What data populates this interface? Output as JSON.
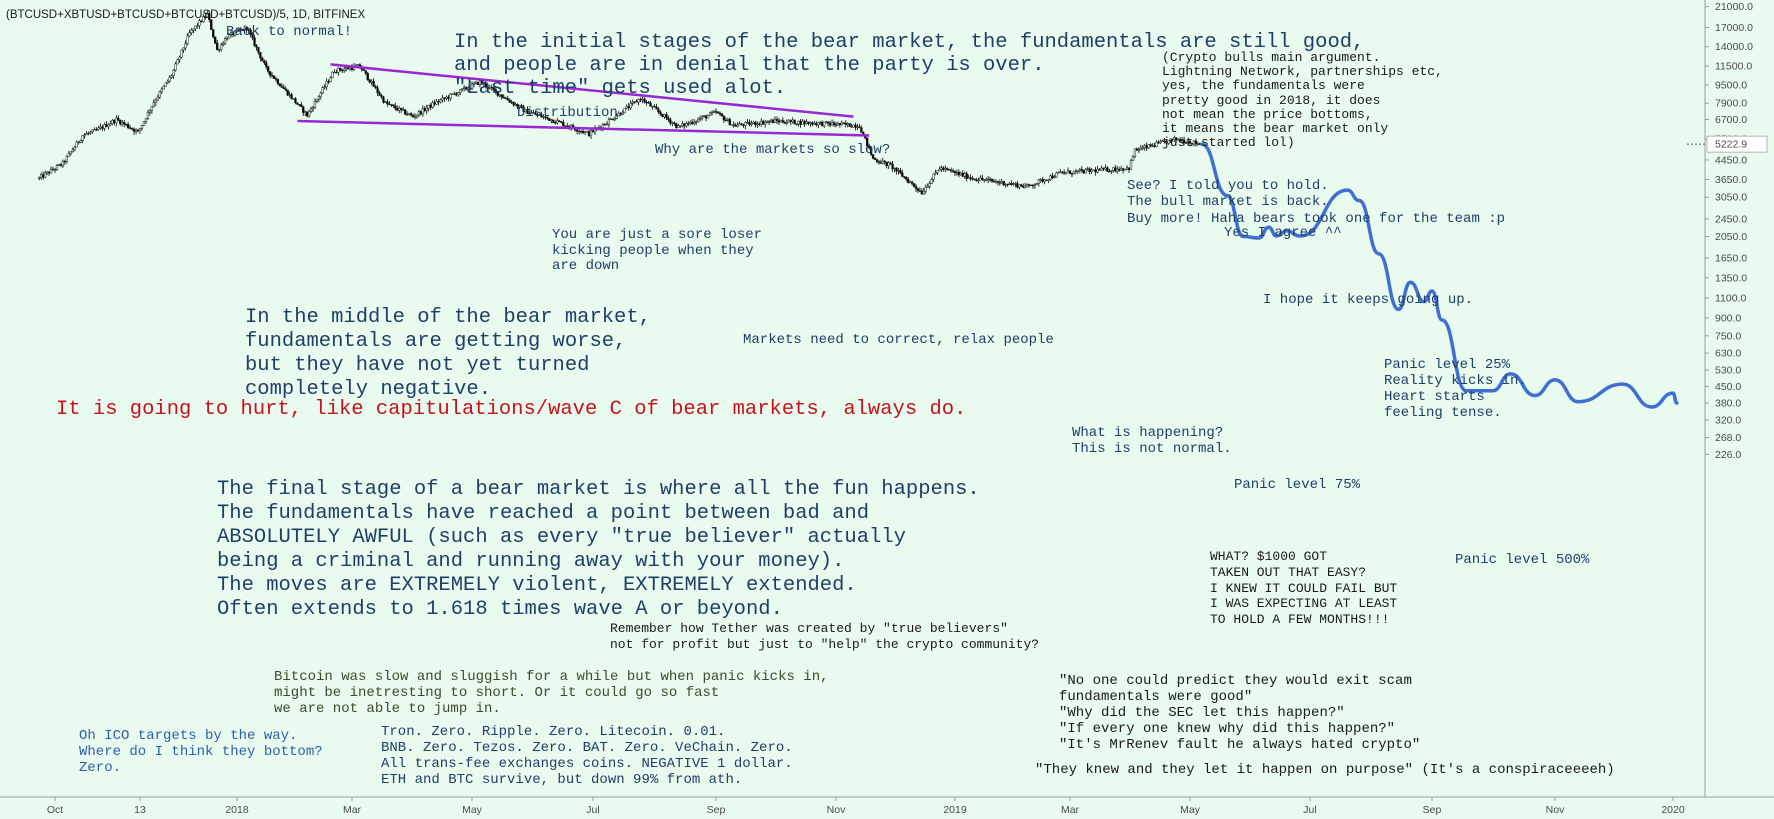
{
  "symbol": "(BTCUSD+XBTUSD+BTCUSD+BTCUSD+BTCUSD)/5, 1D, BITFINEX",
  "colors": {
    "background": "#e9faef",
    "up_candle": "#1e1e1e",
    "down_candle": "#000000",
    "trendline": "#9b27d4",
    "projection": "#3f6fd1",
    "text_blue": "#1f3f66",
    "text_red": "#c3141b",
    "text_dark": "#1a1a1a",
    "text_olive": "#3d4a2a",
    "text_link": "#2d5fa8",
    "price_label_bg": "#ffffff"
  },
  "annotations": {
    "back_to_normal": "Back to normal!",
    "initial_stage": "In the initial stages of the bear market, the fundamentals are still good,\nand people are in denial that the party is over.\n\"Last time\" gets used alot.",
    "crypto_bulls": "(Crypto bulls main argument.\nLightning Network, partnerships etc,\nyes, the fundamentals were\npretty good in 2018, it does\nnot mean the price bottoms,\nit means the bear market only\njust started lol)",
    "distribution": "Distribution",
    "why_slow": "Why are the markets so slow?",
    "sore_loser": "You are just a sore loser\nkicking people when they\nare down",
    "told_you": "See? I told you to hold.\nThe bull market is back.\nBuy more! Haha bears took one for the team :p",
    "yes_agree": "Yes I agree ^^",
    "middle_stage": "In the middle of the bear market,\nfundamentals are getting worse,\nbut they have not yet turned\ncompletely negative.",
    "markets_correct": "Markets need to correct, relax people",
    "keeps_going": "I hope it keeps going up.",
    "panic25": "Panic level 25%\nReality kicks in.\nHeart starts\nfeeling tense.",
    "hurt": "It is going to hurt, like capitulations/wave C of bear markets, always do.",
    "happening": "What is happening?\nThis is not normal.",
    "final_stage": "The final stage of a bear market is where all the fun happens.\nThe fundamentals have reached a point between bad and\nABSOLUTELY AWFUL (such as every \"true believer\" actually\nbeing a criminal and running away with your money).\nThe moves are EXTREMELY violent, EXTREMELY extended.\nOften extends to 1.618 times wave A or beyond.",
    "panic75": "Panic level 75%",
    "what1000": "WHAT? $1000 GOT\nTAKEN OUT THAT EASY?\nI KNEW IT COULD FAIL BUT\nI WAS EXPECTING AT LEAST\nTO HOLD A FEW MONTHS!!!",
    "panic500": "Panic level 500%",
    "tether": "Remember how Tether was created by \"true believers\"\nnot for profit but just to \"help\" the crypto community?",
    "sluggish": "Bitcoin was slow and sluggish for a while but when panic kicks in,\nmight be inetresting to short. Or it could go so fast\nwe are not able to jump in.",
    "exit_scam": "\"No one could predict they would exit scam\nfundamentals were good\"\n\"Why did the SEC let this happen?\"\n\"If every one knew why did this happen?\"\n\"It's MrRenev fault he always hated crypto\"",
    "ico": "Oh ICO targets by the way.\nWhere do I think they bottom?\nZero.",
    "tron": "Tron. Zero. Ripple. Zero. Litecoin. 0.01.\nBNB. Zero. Tezos. Zero. BAT. Zero. VeChain. Zero.\nAll trans-fee exchanges coins. NEGATIVE 1 dollar.\nETH and BTC survive, but down 99% from ath.",
    "they_knew": "\"They knew and they let it happen on purpose\" (It's a conspiraceeeeh)"
  },
  "chart_data": {
    "type": "candlestick",
    "symbol": "(BTCUSD+XBTUSD+BTCUSD+BTCUSD+BTCUSD)/5",
    "interval": "1D",
    "exchange": "BITFINEX",
    "y_scale": "log",
    "ylim": [
      210,
      22000
    ],
    "xlim": [
      "2017-09-23",
      "2020-02-10"
    ],
    "last_price": 5222.9,
    "y_ticks": [
      21000.0,
      17000.0,
      14000.0,
      11500.0,
      9500.0,
      7900.0,
      6700.0,
      5500.0,
      4450.0,
      3650.0,
      3050.0,
      2450.0,
      2050.0,
      1650.0,
      1350.0,
      1100.0,
      900.0,
      750.0,
      630.0,
      530.0,
      450.0,
      380.0,
      320.0,
      268.0,
      226.0
    ],
    "x_ticks": [
      "Oct",
      "13",
      "2018",
      "Mar",
      "May",
      "Jul",
      "Sep",
      "Nov",
      "2019",
      "Mar",
      "May",
      "Jul",
      "Sep",
      "Nov",
      "2020"
    ],
    "x_tick_dates": [
      "2017-10-01",
      "2017-11-13",
      "2018-01-01",
      "2018-03-01",
      "2018-05-01",
      "2018-07-01",
      "2018-09-01",
      "2018-11-01",
      "2019-01-01",
      "2019-03-01",
      "2019-05-01",
      "2019-07-01",
      "2019-09-01",
      "2019-11-01",
      "2020-01-01"
    ],
    "price_path": [
      [
        "2017-09-23",
        3700
      ],
      [
        "2017-10-05",
        4300
      ],
      [
        "2017-10-15",
        5700
      ],
      [
        "2017-10-22",
        6000
      ],
      [
        "2017-11-01",
        6700
      ],
      [
        "2017-11-12",
        5900
      ],
      [
        "2017-11-20",
        8000
      ],
      [
        "2017-11-29",
        10500
      ],
      [
        "2017-12-08",
        16000
      ],
      [
        "2017-12-17",
        19500
      ],
      [
        "2017-12-22",
        13500
      ],
      [
        "2017-12-27",
        15500
      ],
      [
        "2018-01-06",
        17000
      ],
      [
        "2018-01-16",
        11200
      ],
      [
        "2018-02-06",
        7000
      ],
      [
        "2018-02-20",
        11000
      ],
      [
        "2018-03-05",
        11500
      ],
      [
        "2018-03-18",
        7900
      ],
      [
        "2018-04-01",
        6900
      ],
      [
        "2018-04-12",
        7900
      ],
      [
        "2018-05-05",
        9800
      ],
      [
        "2018-05-28",
        7300
      ],
      [
        "2018-06-12",
        6600
      ],
      [
        "2018-06-29",
        5800
      ],
      [
        "2018-07-10",
        6700
      ],
      [
        "2018-07-25",
        8300
      ],
      [
        "2018-08-13",
        6200
      ],
      [
        "2018-09-01",
        7200
      ],
      [
        "2018-09-10",
        6300
      ],
      [
        "2018-10-01",
        6600
      ],
      [
        "2018-11-13",
        6300
      ],
      [
        "2018-11-20",
        4500
      ],
      [
        "2018-11-29",
        4200
      ],
      [
        "2018-12-15",
        3200
      ],
      [
        "2018-12-24",
        4100
      ],
      [
        "2019-01-10",
        3700
      ],
      [
        "2019-02-07",
        3400
      ],
      [
        "2019-02-24",
        3900
      ],
      [
        "2019-03-31",
        4100
      ],
      [
        "2019-04-03",
        4900
      ],
      [
        "2019-04-24",
        5500
      ],
      [
        "2019-05-03",
        5300
      ],
      [
        "2019-05-07",
        5222.9
      ]
    ],
    "projection_path": [
      [
        "2019-05-07",
        5222.9
      ],
      [
        "2019-05-20",
        3100
      ],
      [
        "2019-05-28",
        2050
      ],
      [
        "2019-06-05",
        2020
      ],
      [
        "2019-06-10",
        2250
      ],
      [
        "2019-06-14",
        2060
      ],
      [
        "2019-06-19",
        2170
      ],
      [
        "2019-06-26",
        2060
      ],
      [
        "2019-07-20",
        3280
      ],
      [
        "2019-07-26",
        2950
      ],
      [
        "2019-08-05",
        1720
      ],
      [
        "2019-08-15",
        980
      ],
      [
        "2019-08-21",
        1290
      ],
      [
        "2019-08-28",
        1060
      ],
      [
        "2019-09-01",
        1180
      ],
      [
        "2019-09-06",
        880
      ],
      [
        "2019-09-18",
        430
      ],
      [
        "2019-10-01",
        430
      ],
      [
        "2019-10-10",
        510
      ],
      [
        "2019-10-22",
        410
      ],
      [
        "2019-11-01",
        480
      ],
      [
        "2019-11-13",
        385
      ],
      [
        "2019-12-06",
        460
      ],
      [
        "2019-12-21",
        365
      ],
      [
        "2020-01-01",
        420
      ],
      [
        "2020-01-03",
        380
      ]
    ],
    "trendlines": [
      {
        "from": [
          "2018-02-18",
          11700
        ],
        "to": [
          "2018-11-10",
          6900
        ]
      },
      {
        "from": [
          "2018-02-01",
          6600
        ],
        "to": [
          "2018-11-18",
          5700
        ]
      }
    ]
  }
}
